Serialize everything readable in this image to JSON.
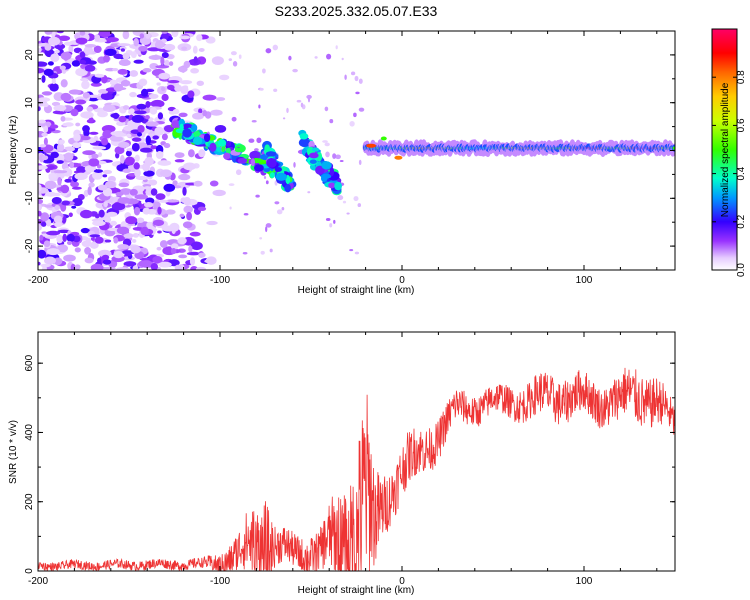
{
  "title": "S233.2025.332.05.07.E33",
  "chart_data": [
    {
      "type": "heatmap",
      "name": "spectrogram",
      "xlabel": "Height of straight line (km)",
      "ylabel": "Frequency (Hz)",
      "xlim": [
        -200,
        150
      ],
      "ylim": [
        -25,
        25
      ],
      "xticks": [
        "-200",
        "-100",
        "0",
        "100"
      ],
      "xtick_values": [
        -200,
        -100,
        0,
        100
      ],
      "yticks": [
        "-20",
        "-10",
        "0",
        "10",
        "20"
      ],
      "ytick_values": [
        -20,
        -10,
        0,
        10,
        20
      ],
      "colorbar": {
        "label": "Normalized spectral amplitude",
        "range": [
          0,
          1
        ],
        "ticks": [
          "0.0",
          "0.2",
          "0.4",
          "0.6",
          "0.8"
        ],
        "tick_values": [
          0.0,
          0.2,
          0.4,
          0.6,
          0.8
        ]
      },
      "features": {
        "noise_region_x": [
          -200,
          -95
        ],
        "arc_1": {
          "x": [
            -125,
            -70
          ],
          "freq": [
            5,
            -4
          ],
          "peak_amplitude": 0.45
        },
        "arc_2": {
          "x": [
            -75,
            -60
          ],
          "freq": [
            0,
            -8
          ],
          "peak_amplitude": 0.4
        },
        "arc_3": {
          "x": [
            -55,
            -35
          ],
          "freq": [
            2,
            -8
          ],
          "peak_amplitude": 0.35
        },
        "carrier": {
          "x": [
            -20,
            150
          ],
          "freq": 0.5,
          "peak_amplitude": 1.0
        }
      }
    },
    {
      "type": "line",
      "name": "snr",
      "xlabel": "Height of straight line (km)",
      "ylabel": "SNR (10 * v/v)",
      "xlim": [
        -200,
        150
      ],
      "ylim": [
        0,
        690
      ],
      "xticks": [
        "-200",
        "-100",
        "0",
        "100"
      ],
      "xtick_values": [
        -200,
        -100,
        0,
        100
      ],
      "yticks": [
        "0",
        "200",
        "400",
        "600"
      ],
      "ytick_values": [
        0,
        200,
        400,
        600
      ],
      "color": "#ee3333",
      "envelope": {
        "x": [
          -200,
          -110,
          -100,
          -90,
          -75,
          -70,
          -60,
          -45,
          -30,
          -20,
          -15,
          -10,
          -5,
          0,
          10,
          20,
          30,
          40,
          50,
          60,
          70,
          80,
          90,
          100,
          110,
          120,
          130,
          140,
          150
        ],
        "base": [
          15,
          20,
          25,
          45,
          100,
          70,
          55,
          55,
          100,
          180,
          120,
          200,
          250,
          290,
          340,
          390,
          470,
          470,
          490,
          490,
          490,
          505,
          500,
          505,
          485,
          495,
          510,
          490,
          420
        ],
        "amp": [
          12,
          15,
          30,
          60,
          150,
          60,
          50,
          60,
          180,
          300,
          150,
          90,
          80,
          80,
          70,
          60,
          50,
          45,
          45,
          45,
          55,
          65,
          65,
          60,
          60,
          70,
          80,
          70,
          50
        ]
      }
    }
  ]
}
